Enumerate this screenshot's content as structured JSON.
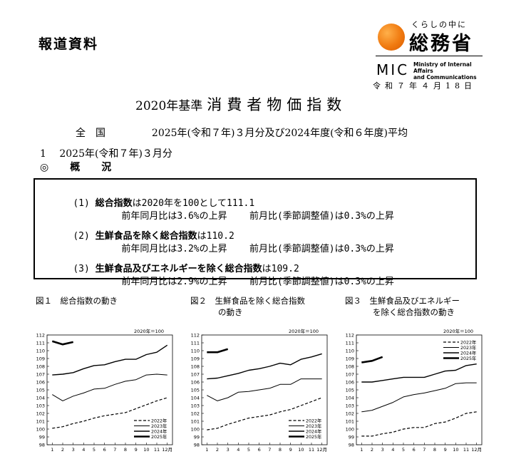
{
  "header": {
    "press_label": "報道資料",
    "logo_sub": "くらしの中に",
    "logo_main": "総務省",
    "mic": "MIC",
    "mic_en_1": "Ministry of Internal Affairs",
    "mic_en_2": "and Communications",
    "date": "令和７年４月18日"
  },
  "title": {
    "prefix": "2020年基準",
    "main": "消費者物価指数"
  },
  "subtitle": {
    "area": "全　国",
    "period": "2025年(令和７年)３月分及び2024年度(令和６年度)平均"
  },
  "section": {
    "heading": "1　 2025年(令和７年)３月分",
    "overview": "◎　概　況"
  },
  "summary": [
    {
      "num": "(1)",
      "bold": "総合指数",
      "rest": "は2020年を100として111.1",
      "yoy": "前年同月比は3.6%の上昇",
      "mom": "前月比(季節調整値)は0.3%の上昇"
    },
    {
      "num": "(2)",
      "bold": "生鮮食品を除く総合指数",
      "rest": "は110.2",
      "yoy": "前年同月比は3.2%の上昇",
      "mom": "前月比(季節調整値)は0.3%の上昇"
    },
    {
      "num": "(3)",
      "bold": "生鮮食品及びエネルギーを除く総合指数",
      "rest": "は109.2",
      "yoy": "前年同月比は2.9%の上昇",
      "mom": "前月比(季節調整値)は0.3%の上昇"
    }
  ],
  "figures": {
    "captions": [
      {
        "line1": "図１　総合指数の動き",
        "line2": ""
      },
      {
        "line1": "図２　生鮮食品を除く総合指数",
        "line2": "の動き"
      },
      {
        "line1": "図３　生鮮食品及びエネルギー",
        "line2": "を除く総合指数の動き"
      }
    ]
  },
  "chart_data": [
    {
      "type": "line",
      "note": "2020年＝100",
      "ylim": [
        98,
        112
      ],
      "yticks": [
        "98",
        "99",
        "100",
        "101",
        "102",
        "103",
        "104",
        "105",
        "106",
        "107",
        "108",
        "109",
        "110",
        "111",
        "112"
      ],
      "xticks": [
        "1",
        "2",
        "3",
        "4",
        "5",
        "6",
        "7",
        "8",
        "9",
        "10",
        "11",
        "12月"
      ],
      "series": [
        {
          "name": "2022年",
          "style": "dashed",
          "values": [
            100.1,
            100.3,
            100.7,
            101.0,
            101.4,
            101.7,
            101.9,
            102.1,
            102.6,
            103.1,
            103.6,
            104.0
          ]
        },
        {
          "name": "2023年",
          "style": "thin",
          "values": [
            104.4,
            103.6,
            104.2,
            104.6,
            105.1,
            105.2,
            105.7,
            106.1,
            106.3,
            106.9,
            107.0,
            106.9
          ]
        },
        {
          "name": "2024年",
          "style": "medium",
          "values": [
            106.9,
            107.0,
            107.2,
            107.7,
            108.1,
            108.2,
            108.6,
            108.9,
            108.9,
            109.5,
            109.8,
            110.7
          ]
        },
        {
          "name": "2025年",
          "style": "bold",
          "values": [
            111.2,
            110.8,
            111.1
          ]
        }
      ]
    },
    {
      "type": "line",
      "note": "2020年＝100",
      "ylim": [
        98,
        112
      ],
      "yticks": [
        "98",
        "99",
        "100",
        "101",
        "102",
        "103",
        "104",
        "105",
        "106",
        "107",
        "108",
        "109",
        "110",
        "111",
        "112"
      ],
      "xticks": [
        "1",
        "2",
        "3",
        "4",
        "5",
        "6",
        "7",
        "8",
        "9",
        "10",
        "11",
        "12月"
      ],
      "series": [
        {
          "name": "2022年",
          "style": "dashed",
          "values": [
            99.9,
            100.1,
            100.6,
            101.0,
            101.4,
            101.6,
            101.8,
            102.2,
            102.5,
            103.0,
            103.5,
            104.0
          ]
        },
        {
          "name": "2023年",
          "style": "thin",
          "values": [
            104.3,
            103.6,
            104.0,
            104.7,
            104.8,
            105.0,
            105.2,
            105.7,
            105.7,
            106.4,
            106.4,
            106.4
          ]
        },
        {
          "name": "2024年",
          "style": "medium",
          "values": [
            106.4,
            106.5,
            106.8,
            107.1,
            107.5,
            107.7,
            108.0,
            108.4,
            108.2,
            108.9,
            109.2,
            109.6
          ]
        },
        {
          "name": "2025年",
          "style": "bold",
          "values": [
            109.8,
            109.8,
            110.2
          ]
        }
      ]
    },
    {
      "type": "line",
      "note": "2020年＝100",
      "ylim": [
        98,
        112
      ],
      "yticks": [
        "98",
        "99",
        "100",
        "101",
        "102",
        "103",
        "104",
        "105",
        "106",
        "107",
        "108",
        "109",
        "110",
        "111",
        "112"
      ],
      "xticks": [
        "1",
        "2",
        "3",
        "4",
        "5",
        "6",
        "7",
        "8",
        "9",
        "10",
        "11",
        "12月"
      ],
      "series": [
        {
          "name": "2022年",
          "style": "dashed",
          "values": [
            99.1,
            99.1,
            99.4,
            99.6,
            100.0,
            100.2,
            100.2,
            100.7,
            100.9,
            101.4,
            102.0,
            102.2
          ]
        },
        {
          "name": "2023年",
          "style": "thin",
          "values": [
            102.2,
            102.4,
            102.9,
            103.4,
            104.1,
            104.4,
            104.6,
            104.9,
            105.2,
            105.8,
            105.9,
            105.9
          ]
        },
        {
          "name": "2024年",
          "style": "medium",
          "values": [
            106.0,
            106.0,
            106.2,
            106.4,
            106.6,
            106.6,
            106.6,
            107.0,
            107.4,
            107.5,
            108.1,
            108.3
          ]
        },
        {
          "name": "2025年",
          "style": "bold",
          "values": [
            108.5,
            108.7,
            109.2
          ]
        }
      ]
    }
  ]
}
